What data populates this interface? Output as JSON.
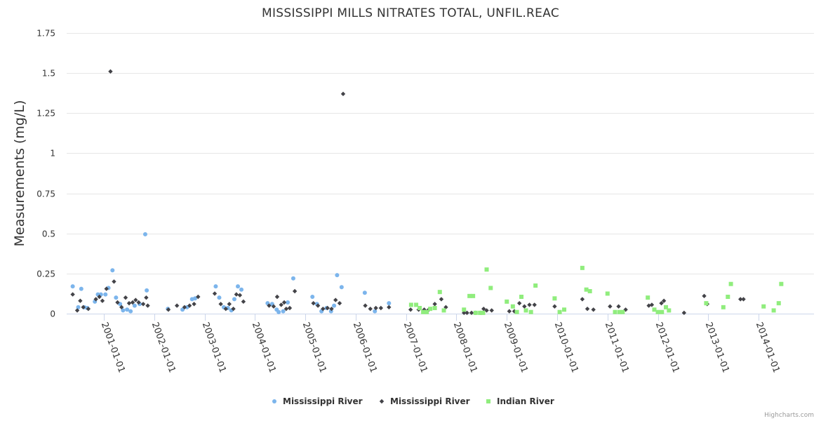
{
  "chart_data": {
    "type": "scatter",
    "title": "MISSISSIPPI MILLS NITRATES TOTAL, UNFIL.REAC",
    "ylabel": "Measurements (mg/L)",
    "xlabel": "",
    "ylim": [
      0,
      1.75
    ],
    "yticks": [
      0,
      0.25,
      0.5,
      0.75,
      1,
      1.25,
      1.5,
      1.75
    ],
    "ytick_labels": [
      "0",
      "0.25",
      "0.5",
      "0.75",
      "1",
      "1.25",
      "1.5",
      "1.75"
    ],
    "xlim": [
      2000.26,
      2015.1
    ],
    "xticks": [
      2001,
      2002,
      2003,
      2004,
      2005,
      2006,
      2007,
      2008,
      2009,
      2010,
      2011,
      2012,
      2013,
      2014
    ],
    "xtick_labels": [
      "2001-01-01",
      "2002-01-01",
      "2003-01-01",
      "2004-01-01",
      "2005-01-01",
      "2006-01-01",
      "2007-01-01",
      "2008-01-01",
      "2009-01-01",
      "2010-01-01",
      "2011-01-01",
      "2012-01-01",
      "2013-01-01",
      "2014-01-01"
    ],
    "grid": true,
    "legend_position": "bottom-center",
    "series": [
      {
        "name": "Mississippi River",
        "marker": "circle",
        "color": "#7cb5ec",
        "points": [
          [
            2000.38,
            0.17
          ],
          [
            2000.49,
            0.04
          ],
          [
            2000.55,
            0.155
          ],
          [
            2000.61,
            0.04
          ],
          [
            2000.67,
            0.035
          ],
          [
            2000.82,
            0.075
          ],
          [
            2000.88,
            0.12
          ],
          [
            2000.94,
            0.12
          ],
          [
            2001.03,
            0.12
          ],
          [
            2001.09,
            0.16
          ],
          [
            2001.17,
            0.27
          ],
          [
            2001.24,
            0.1
          ],
          [
            2001.32,
            0.06
          ],
          [
            2001.38,
            0.02
          ],
          [
            2001.46,
            0.025
          ],
          [
            2001.53,
            0.015
          ],
          [
            2001.61,
            0.05
          ],
          [
            2001.71,
            0.06
          ],
          [
            2001.82,
            0.495
          ],
          [
            2001.85,
            0.145
          ],
          [
            2002.27,
            0.03
          ],
          [
            2002.56,
            0.025
          ],
          [
            2002.65,
            0.04
          ],
          [
            2002.75,
            0.09
          ],
          [
            2002.81,
            0.095
          ],
          [
            2003.22,
            0.17
          ],
          [
            2003.29,
            0.1
          ],
          [
            2003.38,
            0.04
          ],
          [
            2003.46,
            0.035
          ],
          [
            2003.53,
            0.02
          ],
          [
            2003.59,
            0.09
          ],
          [
            2003.66,
            0.17
          ],
          [
            2003.73,
            0.15
          ],
          [
            2004.25,
            0.065
          ],
          [
            2004.34,
            0.06
          ],
          [
            2004.43,
            0.025
          ],
          [
            2004.47,
            0.01
          ],
          [
            2004.56,
            0.015
          ],
          [
            2004.65,
            0.07
          ],
          [
            2004.76,
            0.22
          ],
          [
            2005.14,
            0.105
          ],
          [
            2005.23,
            0.06
          ],
          [
            2005.32,
            0.015
          ],
          [
            2005.42,
            0.035
          ],
          [
            2005.51,
            0.015
          ],
          [
            2005.57,
            0.05
          ],
          [
            2005.63,
            0.24
          ],
          [
            2005.72,
            0.165
          ],
          [
            2006.18,
            0.13
          ],
          [
            2006.38,
            0.015
          ],
          [
            2006.66,
            0.065
          ]
        ]
      },
      {
        "name": "Mississippi River",
        "marker": "diamond",
        "color": "#434348",
        "points": [
          [
            2000.38,
            0.12
          ],
          [
            2000.47,
            0.02
          ],
          [
            2000.53,
            0.08
          ],
          [
            2000.59,
            0.04
          ],
          [
            2000.69,
            0.03
          ],
          [
            2000.84,
            0.09
          ],
          [
            2000.91,
            0.105
          ],
          [
            2000.97,
            0.08
          ],
          [
            2001.05,
            0.155
          ],
          [
            2001.13,
            1.51
          ],
          [
            2001.2,
            0.2
          ],
          [
            2001.27,
            0.07
          ],
          [
            2001.35,
            0.04
          ],
          [
            2001.43,
            0.1
          ],
          [
            2001.5,
            0.065
          ],
          [
            2001.57,
            0.07
          ],
          [
            2001.63,
            0.085
          ],
          [
            2001.69,
            0.07
          ],
          [
            2001.78,
            0.06
          ],
          [
            2001.84,
            0.1
          ],
          [
            2001.87,
            0.05
          ],
          [
            2002.28,
            0.025
          ],
          [
            2002.45,
            0.05
          ],
          [
            2002.6,
            0.04
          ],
          [
            2002.7,
            0.05
          ],
          [
            2002.79,
            0.06
          ],
          [
            2002.87,
            0.105
          ],
          [
            2003.2,
            0.125
          ],
          [
            2003.32,
            0.06
          ],
          [
            2003.42,
            0.03
          ],
          [
            2003.49,
            0.06
          ],
          [
            2003.57,
            0.03
          ],
          [
            2003.63,
            0.12
          ],
          [
            2003.7,
            0.115
          ],
          [
            2003.77,
            0.075
          ],
          [
            2004.28,
            0.05
          ],
          [
            2004.37,
            0.045
          ],
          [
            2004.44,
            0.105
          ],
          [
            2004.52,
            0.055
          ],
          [
            2004.58,
            0.07
          ],
          [
            2004.62,
            0.03
          ],
          [
            2004.69,
            0.035
          ],
          [
            2004.79,
            0.14
          ],
          [
            2005.16,
            0.065
          ],
          [
            2005.25,
            0.05
          ],
          [
            2005.35,
            0.03
          ],
          [
            2005.44,
            0.035
          ],
          [
            2005.52,
            0.03
          ],
          [
            2005.6,
            0.085
          ],
          [
            2005.68,
            0.065
          ],
          [
            2005.75,
            1.37
          ],
          [
            2006.19,
            0.05
          ],
          [
            2006.29,
            0.03
          ],
          [
            2006.4,
            0.035
          ],
          [
            2006.5,
            0.035
          ],
          [
            2006.66,
            0.04
          ],
          [
            2007.09,
            0.025
          ],
          [
            2007.25,
            0.025
          ],
          [
            2007.36,
            0.025
          ],
          [
            2007.45,
            0.025
          ],
          [
            2007.57,
            0.06
          ],
          [
            2007.7,
            0.09
          ],
          [
            2007.79,
            0.04
          ],
          [
            2008.15,
            0.005
          ],
          [
            2008.21,
            0.005
          ],
          [
            2008.3,
            0.005
          ],
          [
            2008.38,
            0.005
          ],
          [
            2008.48,
            0.005
          ],
          [
            2008.54,
            0.03
          ],
          [
            2008.6,
            0.02
          ],
          [
            2008.7,
            0.02
          ],
          [
            2009.05,
            0.015
          ],
          [
            2009.15,
            0.015
          ],
          [
            2009.25,
            0.065
          ],
          [
            2009.35,
            0.045
          ],
          [
            2009.45,
            0.055
          ],
          [
            2009.55,
            0.055
          ],
          [
            2009.95,
            0.045
          ],
          [
            2010.5,
            0.09
          ],
          [
            2010.6,
            0.03
          ],
          [
            2010.72,
            0.025
          ],
          [
            2011.05,
            0.045
          ],
          [
            2011.22,
            0.045
          ],
          [
            2011.36,
            0.025
          ],
          [
            2011.82,
            0.05
          ],
          [
            2011.88,
            0.055
          ],
          [
            2012.07,
            0.065
          ],
          [
            2012.12,
            0.08
          ],
          [
            2012.52,
            0.005
          ],
          [
            2012.92,
            0.11
          ],
          [
            2012.98,
            0.06
          ],
          [
            2013.64,
            0.09
          ],
          [
            2013.7,
            0.09
          ]
        ]
      },
      {
        "name": "Indian River",
        "marker": "square",
        "color": "#90ed7d",
        "points": [
          [
            2007.1,
            0.055
          ],
          [
            2007.2,
            0.055
          ],
          [
            2007.27,
            0.035
          ],
          [
            2007.34,
            0.01
          ],
          [
            2007.41,
            0.01
          ],
          [
            2007.48,
            0.03
          ],
          [
            2007.57,
            0.035
          ],
          [
            2007.67,
            0.135
          ],
          [
            2007.75,
            0.02
          ],
          [
            2008.15,
            0.025
          ],
          [
            2008.26,
            0.11
          ],
          [
            2008.33,
            0.11
          ],
          [
            2008.38,
            0.005
          ],
          [
            2008.47,
            0.005
          ],
          [
            2008.53,
            0.005
          ],
          [
            2008.6,
            0.275
          ],
          [
            2008.68,
            0.16
          ],
          [
            2009.0,
            0.075
          ],
          [
            2009.12,
            0.045
          ],
          [
            2009.2,
            0.01
          ],
          [
            2009.29,
            0.105
          ],
          [
            2009.38,
            0.02
          ],
          [
            2009.48,
            0.01
          ],
          [
            2009.57,
            0.175
          ],
          [
            2009.95,
            0.095
          ],
          [
            2010.05,
            0.01
          ],
          [
            2010.14,
            0.025
          ],
          [
            2010.5,
            0.285
          ],
          [
            2010.58,
            0.15
          ],
          [
            2010.65,
            0.14
          ],
          [
            2011.0,
            0.125
          ],
          [
            2011.15,
            0.01
          ],
          [
            2011.24,
            0.01
          ],
          [
            2011.3,
            0.01
          ],
          [
            2011.8,
            0.1
          ],
          [
            2011.93,
            0.025
          ],
          [
            2012.0,
            0.01
          ],
          [
            2012.08,
            0.01
          ],
          [
            2012.16,
            0.04
          ],
          [
            2012.22,
            0.02
          ],
          [
            2012.96,
            0.065
          ],
          [
            2013.3,
            0.04
          ],
          [
            2013.39,
            0.105
          ],
          [
            2013.45,
            0.185
          ],
          [
            2014.1,
            0.045
          ],
          [
            2014.3,
            0.02
          ],
          [
            2014.4,
            0.065
          ],
          [
            2014.45,
            0.185
          ]
        ]
      }
    ]
  },
  "credits": "Highcharts.com"
}
